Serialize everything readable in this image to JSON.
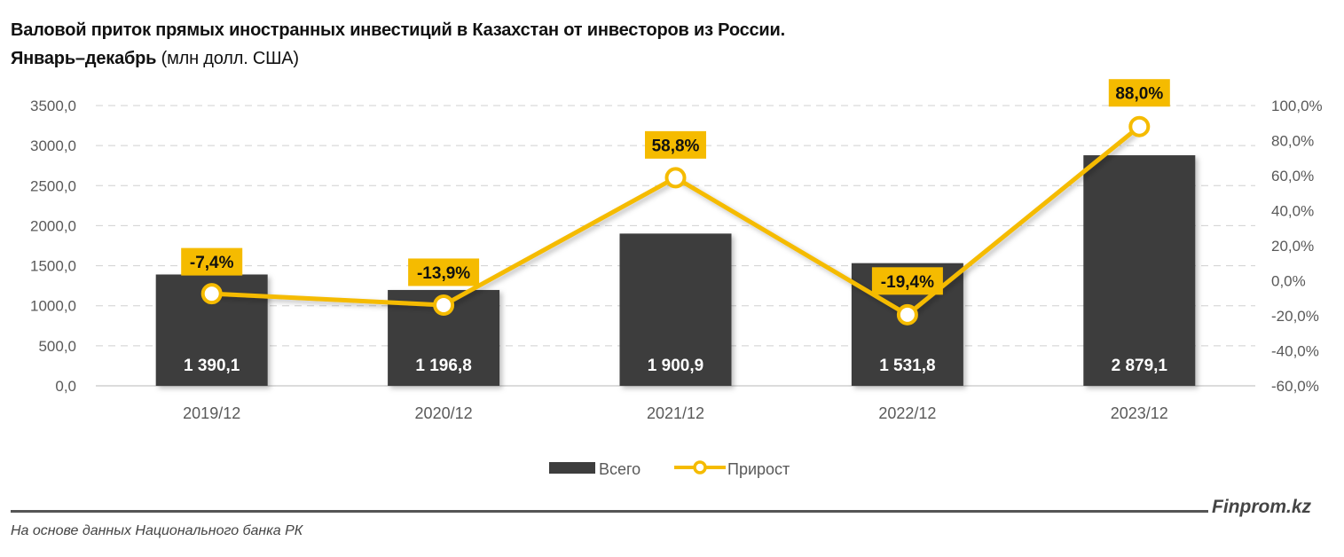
{
  "header": {
    "title_line1": "Валовой приток прямых иностранных инвестиций в Казахстан от инвесторов из России.",
    "title_line2_bold": "Январь–декабрь",
    "title_line2_normal": " (млн долл. США)"
  },
  "footer": {
    "brand": "Finprom.kz",
    "source": "На основе данных Национального банка РК"
  },
  "colors": {
    "bar": "#3d3d3d",
    "line": "#f5bb00",
    "label_bg": "#f5bb00",
    "grid": "#d0d0d0",
    "axis_text": "#595959"
  },
  "chart_data": {
    "type": "bar+line",
    "title": "Валовой приток прямых иностранных инвестиций в Казахстан от инвесторов из России. Январь–декабрь (млн долл. США)",
    "categories": [
      "2019/12",
      "2020/12",
      "2021/12",
      "2022/12",
      "2023/12"
    ],
    "series": [
      {
        "name": "Всего",
        "type": "bar",
        "axis": "left",
        "values": [
          1390.1,
          1196.8,
          1900.9,
          1531.8,
          2879.1
        ],
        "labels": [
          "1 390,1",
          "1 196,8",
          "1 900,9",
          "1 531,8",
          "2 879,1"
        ]
      },
      {
        "name": "Прирост",
        "type": "line",
        "axis": "right",
        "values": [
          -7.4,
          -13.9,
          58.8,
          -19.4,
          88.0
        ],
        "labels": [
          "-7,4%",
          "-13,9%",
          "58,8%",
          "-19,4%",
          "88,0%"
        ]
      }
    ],
    "y_left": {
      "ylim": [
        0,
        3500
      ],
      "ticks": [
        "0,0",
        "500,0",
        "1000,0",
        "1500,0",
        "2000,0",
        "2500,0",
        "3000,0",
        "3500,0"
      ]
    },
    "y_right": {
      "ylim": [
        -60,
        100
      ],
      "ticks": [
        "-60,0%",
        "-40,0%",
        "-20,0%",
        "0,0%",
        "20,0%",
        "40,0%",
        "60,0%",
        "80,0%",
        "100,0%"
      ]
    },
    "xlabel": "",
    "ylabel": "",
    "grid": true,
    "legend_position": "bottom",
    "legend": [
      "Всего",
      "Прирост"
    ]
  }
}
